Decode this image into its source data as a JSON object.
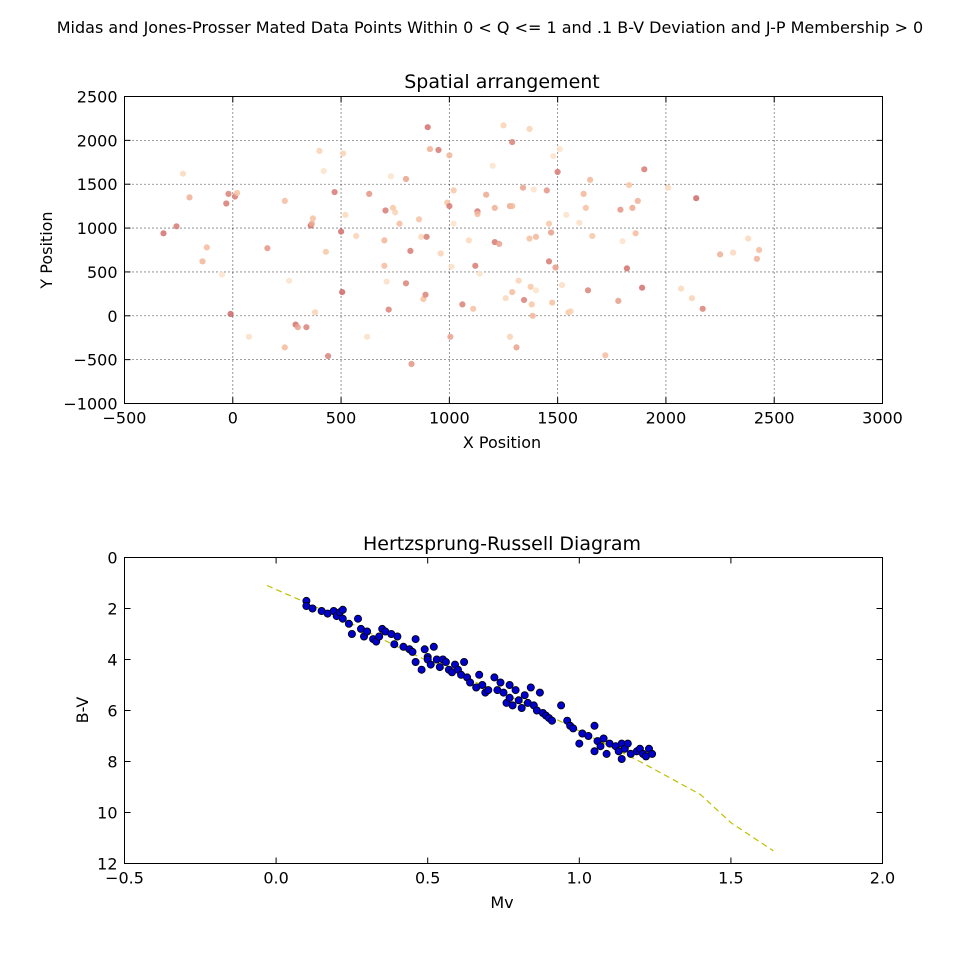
{
  "figure": {
    "suptitle": "Midas and Jones-Prosser Mated Data Points Within 0 < Q <= 1 and .1 B-V Deviation and J-P Membership > 0"
  },
  "chart_data": [
    {
      "type": "scatter",
      "title": "Spatial arrangement",
      "xlabel": "X Position",
      "ylabel": "Y Position",
      "xlim": [
        -500,
        3000
      ],
      "ylim": [
        -1000,
        2500
      ],
      "xticks": [
        -500,
        0,
        500,
        1000,
        1500,
        2000,
        2500,
        3000
      ],
      "yticks": [
        -1000,
        -500,
        0,
        500,
        1000,
        1500,
        2000,
        2500
      ],
      "grid": true,
      "color_scale": [
        "#fde9d2",
        "#f7c3a2",
        "#e79a88",
        "#c95f61"
      ],
      "points": [
        {
          "x": -320,
          "y": 940,
          "c": 0.9
        },
        {
          "x": -260,
          "y": 1020,
          "c": 0.85
        },
        {
          "x": -230,
          "y": 1620,
          "c": 0.15
        },
        {
          "x": -200,
          "y": 1350,
          "c": 0.5
        },
        {
          "x": -140,
          "y": 620,
          "c": 0.45
        },
        {
          "x": -120,
          "y": 780,
          "c": 0.4
        },
        {
          "x": -50,
          "y": 470,
          "c": 0.05
        },
        {
          "x": -30,
          "y": 1280,
          "c": 0.85
        },
        {
          "x": -20,
          "y": 1390,
          "c": 0.8
        },
        {
          "x": -10,
          "y": 20,
          "c": 0.95
        },
        {
          "x": 10,
          "y": 1360,
          "c": 0.85
        },
        {
          "x": 20,
          "y": 1400,
          "c": 0.35
        },
        {
          "x": 75,
          "y": -240,
          "c": 0.1
        },
        {
          "x": 160,
          "y": 770,
          "c": 0.7
        },
        {
          "x": 240,
          "y": 1310,
          "c": 0.4
        },
        {
          "x": 240,
          "y": -360,
          "c": 0.4
        },
        {
          "x": 260,
          "y": 400,
          "c": 0.05
        },
        {
          "x": 290,
          "y": -100,
          "c": 0.9
        },
        {
          "x": 300,
          "y": -130,
          "c": 0.6
        },
        {
          "x": 340,
          "y": -130,
          "c": 0.8
        },
        {
          "x": 360,
          "y": 1030,
          "c": 0.95
        },
        {
          "x": 365,
          "y": 1050,
          "c": 0.55
        },
        {
          "x": 370,
          "y": 1110,
          "c": 0.35
        },
        {
          "x": 380,
          "y": 40,
          "c": 0.2
        },
        {
          "x": 400,
          "y": 1880,
          "c": 0.2
        },
        {
          "x": 420,
          "y": 1650,
          "c": 0.05
        },
        {
          "x": 430,
          "y": 730,
          "c": 0.3
        },
        {
          "x": 440,
          "y": -460,
          "c": 0.8
        },
        {
          "x": 470,
          "y": 1410,
          "c": 0.85
        },
        {
          "x": 500,
          "y": 960,
          "c": 0.9
        },
        {
          "x": 505,
          "y": 270,
          "c": 0.95
        },
        {
          "x": 510,
          "y": 1850,
          "c": 0.2
        },
        {
          "x": 520,
          "y": 1150,
          "c": 0.15
        },
        {
          "x": 570,
          "y": 910,
          "c": 0.2
        },
        {
          "x": 620,
          "y": -240,
          "c": 0.1
        },
        {
          "x": 630,
          "y": 1390,
          "c": 0.7
        },
        {
          "x": 700,
          "y": 570,
          "c": 0.4
        },
        {
          "x": 700,
          "y": 860,
          "c": 0.45
        },
        {
          "x": 705,
          "y": 1200,
          "c": 0.85
        },
        {
          "x": 710,
          "y": 390,
          "c": 0.1
        },
        {
          "x": 720,
          "y": 70,
          "c": 0.8
        },
        {
          "x": 730,
          "y": 1590,
          "c": 0.05
        },
        {
          "x": 740,
          "y": 1230,
          "c": 0.3
        },
        {
          "x": 750,
          "y": 1180,
          "c": 0.2
        },
        {
          "x": 770,
          "y": 1050,
          "c": 0.4
        },
        {
          "x": 800,
          "y": 370,
          "c": 0.8
        },
        {
          "x": 800,
          "y": 1560,
          "c": 0.6
        },
        {
          "x": 820,
          "y": 740,
          "c": 0.85
        },
        {
          "x": 825,
          "y": -550,
          "c": 0.7
        },
        {
          "x": 860,
          "y": 1100,
          "c": 0.35
        },
        {
          "x": 870,
          "y": 900,
          "c": 0.15
        },
        {
          "x": 880,
          "y": 190,
          "c": 0.35
        },
        {
          "x": 890,
          "y": 240,
          "c": 0.8
        },
        {
          "x": 895,
          "y": 900,
          "c": 0.85
        },
        {
          "x": 900,
          "y": 2150,
          "c": 0.9
        },
        {
          "x": 910,
          "y": 1900,
          "c": 0.5
        },
        {
          "x": 950,
          "y": 1890,
          "c": 0.85
        },
        {
          "x": 960,
          "y": 710,
          "c": 0.2
        },
        {
          "x": 990,
          "y": 1290,
          "c": 0.3
        },
        {
          "x": 1000,
          "y": 1830,
          "c": 0.45
        },
        {
          "x": 1000,
          "y": 1250,
          "c": 0.85
        },
        {
          "x": 1005,
          "y": -240,
          "c": 0.6
        },
        {
          "x": 1010,
          "y": 560,
          "c": 0.1
        },
        {
          "x": 1020,
          "y": 1050,
          "c": 0.05
        },
        {
          "x": 1020,
          "y": 1430,
          "c": 0.3
        },
        {
          "x": 1060,
          "y": 130,
          "c": 0.8
        },
        {
          "x": 1090,
          "y": 860,
          "c": 0.15
        },
        {
          "x": 1110,
          "y": 80,
          "c": 0.35
        },
        {
          "x": 1120,
          "y": 570,
          "c": 0.85
        },
        {
          "x": 1130,
          "y": 1190,
          "c": 0.85
        },
        {
          "x": 1130,
          "y": 1160,
          "c": 0.4
        },
        {
          "x": 1140,
          "y": 480,
          "c": 0.05
        },
        {
          "x": 1170,
          "y": 1380,
          "c": 0.55
        },
        {
          "x": 1200,
          "y": 1710,
          "c": 0.05
        },
        {
          "x": 1210,
          "y": 1230,
          "c": 0.5
        },
        {
          "x": 1210,
          "y": 840,
          "c": 0.85
        },
        {
          "x": 1230,
          "y": 820,
          "c": 0.6
        },
        {
          "x": 1250,
          "y": 2170,
          "c": 0.2
        },
        {
          "x": 1260,
          "y": 200,
          "c": 0.15
        },
        {
          "x": 1280,
          "y": -240,
          "c": 0.2
        },
        {
          "x": 1280,
          "y": 1250,
          "c": 0.55
        },
        {
          "x": 1290,
          "y": 1250,
          "c": 0.4
        },
        {
          "x": 1290,
          "y": 1980,
          "c": 0.8
        },
        {
          "x": 1290,
          "y": 270,
          "c": 0.4
        },
        {
          "x": 1310,
          "y": -360,
          "c": 0.6
        },
        {
          "x": 1320,
          "y": 400,
          "c": 0.2
        },
        {
          "x": 1340,
          "y": 1460,
          "c": 0.6
        },
        {
          "x": 1345,
          "y": 180,
          "c": 0.8
        },
        {
          "x": 1370,
          "y": 2130,
          "c": 0.2
        },
        {
          "x": 1370,
          "y": 880,
          "c": 0.35
        },
        {
          "x": 1375,
          "y": 330,
          "c": 0.3
        },
        {
          "x": 1380,
          "y": 130,
          "c": 0.3
        },
        {
          "x": 1385,
          "y": 0,
          "c": 0.45
        },
        {
          "x": 1390,
          "y": 1440,
          "c": 0.05
        },
        {
          "x": 1400,
          "y": 900,
          "c": 0.45
        },
        {
          "x": 1400,
          "y": 290,
          "c": 0.05
        },
        {
          "x": 1450,
          "y": 1430,
          "c": 0.7
        },
        {
          "x": 1460,
          "y": 1050,
          "c": 0.3
        },
        {
          "x": 1460,
          "y": 620,
          "c": 0.85
        },
        {
          "x": 1470,
          "y": 950,
          "c": 0.65
        },
        {
          "x": 1475,
          "y": 150,
          "c": 0.35
        },
        {
          "x": 1480,
          "y": 1820,
          "c": 0.05
        },
        {
          "x": 1490,
          "y": 550,
          "c": 0.65
        },
        {
          "x": 1500,
          "y": 1640,
          "c": 0.85
        },
        {
          "x": 1510,
          "y": 1900,
          "c": 0.05
        },
        {
          "x": 1520,
          "y": 350,
          "c": 0.1
        },
        {
          "x": 1540,
          "y": 1150,
          "c": 0.05
        },
        {
          "x": 1550,
          "y": 40,
          "c": 0.3
        },
        {
          "x": 1560,
          "y": 50,
          "c": 0.2
        },
        {
          "x": 1600,
          "y": 1060,
          "c": 0.1
        },
        {
          "x": 1620,
          "y": 1390,
          "c": 0.45
        },
        {
          "x": 1630,
          "y": 1230,
          "c": 0.35
        },
        {
          "x": 1640,
          "y": 290,
          "c": 0.8
        },
        {
          "x": 1650,
          "y": 1550,
          "c": 0.45
        },
        {
          "x": 1660,
          "y": 910,
          "c": 0.3
        },
        {
          "x": 1720,
          "y": -450,
          "c": 0.4
        },
        {
          "x": 1780,
          "y": 170,
          "c": 0.65
        },
        {
          "x": 1790,
          "y": 1210,
          "c": 0.7
        },
        {
          "x": 1800,
          "y": 850,
          "c": 0.05
        },
        {
          "x": 1820,
          "y": 540,
          "c": 0.9
        },
        {
          "x": 1830,
          "y": 1490,
          "c": 0.3
        },
        {
          "x": 1845,
          "y": 1230,
          "c": 0.55
        },
        {
          "x": 1860,
          "y": 940,
          "c": 0.4
        },
        {
          "x": 1870,
          "y": 1310,
          "c": 0.5
        },
        {
          "x": 1890,
          "y": 320,
          "c": 0.9
        },
        {
          "x": 1900,
          "y": 1670,
          "c": 0.85
        },
        {
          "x": 2010,
          "y": 1460,
          "c": 0.15
        },
        {
          "x": 2070,
          "y": 310,
          "c": 0.15
        },
        {
          "x": 2120,
          "y": 200,
          "c": 0.2
        },
        {
          "x": 2140,
          "y": 1340,
          "c": 0.95
        },
        {
          "x": 2170,
          "y": 80,
          "c": 0.8
        },
        {
          "x": 2250,
          "y": 700,
          "c": 0.5
        },
        {
          "x": 2310,
          "y": 720,
          "c": 0.15
        },
        {
          "x": 2380,
          "y": 880,
          "c": 0.15
        },
        {
          "x": 2420,
          "y": 650,
          "c": 0.5
        },
        {
          "x": 2430,
          "y": 750,
          "c": 0.4
        }
      ]
    },
    {
      "type": "scatter",
      "title": "Hertzsprung-Russell Diagram",
      "xlabel": "Mv",
      "ylabel": "B-V",
      "xlim": [
        -0.5,
        2.0
      ],
      "ylim": [
        12,
        0
      ],
      "xticks": [
        -0.5,
        0.0,
        0.5,
        1.0,
        1.5,
        2.0
      ],
      "yticks": [
        0,
        2,
        4,
        6,
        8,
        10,
        12
      ],
      "grid": false,
      "point_color": "#0000cc",
      "line_color": "#bfbf00",
      "curve": [
        {
          "x": -0.03,
          "y": 1.1
        },
        {
          "x": 0.2,
          "y": 2.3
        },
        {
          "x": 0.4,
          "y": 3.5
        },
        {
          "x": 0.6,
          "y": 4.6
        },
        {
          "x": 0.8,
          "y": 5.6
        },
        {
          "x": 1.0,
          "y": 6.8
        },
        {
          "x": 1.2,
          "y": 8.0
        },
        {
          "x": 1.4,
          "y": 9.3
        },
        {
          "x": 1.5,
          "y": 10.4
        },
        {
          "x": 1.64,
          "y": 11.5
        }
      ],
      "points": [
        {
          "x": 0.1,
          "y": 1.7
        },
        {
          "x": 0.1,
          "y": 1.9
        },
        {
          "x": 0.12,
          "y": 2.0
        },
        {
          "x": 0.15,
          "y": 2.1
        },
        {
          "x": 0.17,
          "y": 2.2
        },
        {
          "x": 0.19,
          "y": 2.1
        },
        {
          "x": 0.2,
          "y": 2.3
        },
        {
          "x": 0.21,
          "y": 2.15
        },
        {
          "x": 0.22,
          "y": 2.05
        },
        {
          "x": 0.22,
          "y": 2.4
        },
        {
          "x": 0.24,
          "y": 2.6
        },
        {
          "x": 0.25,
          "y": 3.0
        },
        {
          "x": 0.27,
          "y": 2.4
        },
        {
          "x": 0.28,
          "y": 2.8
        },
        {
          "x": 0.29,
          "y": 3.1
        },
        {
          "x": 0.3,
          "y": 2.9
        },
        {
          "x": 0.32,
          "y": 3.2
        },
        {
          "x": 0.33,
          "y": 3.3
        },
        {
          "x": 0.34,
          "y": 3.1
        },
        {
          "x": 0.35,
          "y": 2.8
        },
        {
          "x": 0.36,
          "y": 2.9
        },
        {
          "x": 0.38,
          "y": 3.0
        },
        {
          "x": 0.39,
          "y": 3.4
        },
        {
          "x": 0.4,
          "y": 3.1
        },
        {
          "x": 0.42,
          "y": 3.5
        },
        {
          "x": 0.44,
          "y": 3.6
        },
        {
          "x": 0.45,
          "y": 3.7
        },
        {
          "x": 0.46,
          "y": 3.2
        },
        {
          "x": 0.46,
          "y": 4.1
        },
        {
          "x": 0.48,
          "y": 4.4
        },
        {
          "x": 0.49,
          "y": 3.6
        },
        {
          "x": 0.5,
          "y": 3.9
        },
        {
          "x": 0.5,
          "y": 4.0
        },
        {
          "x": 0.51,
          "y": 4.2
        },
        {
          "x": 0.52,
          "y": 3.5
        },
        {
          "x": 0.53,
          "y": 4.0
        },
        {
          "x": 0.54,
          "y": 4.3
        },
        {
          "x": 0.55,
          "y": 4.0
        },
        {
          "x": 0.56,
          "y": 4.1
        },
        {
          "x": 0.57,
          "y": 4.4
        },
        {
          "x": 0.58,
          "y": 4.5
        },
        {
          "x": 0.59,
          "y": 4.2
        },
        {
          "x": 0.6,
          "y": 4.4
        },
        {
          "x": 0.61,
          "y": 4.6
        },
        {
          "x": 0.62,
          "y": 4.1
        },
        {
          "x": 0.63,
          "y": 4.7
        },
        {
          "x": 0.64,
          "y": 4.9
        },
        {
          "x": 0.66,
          "y": 5.1
        },
        {
          "x": 0.67,
          "y": 4.6
        },
        {
          "x": 0.68,
          "y": 5.0
        },
        {
          "x": 0.69,
          "y": 5.3
        },
        {
          "x": 0.7,
          "y": 5.2
        },
        {
          "x": 0.72,
          "y": 4.7
        },
        {
          "x": 0.73,
          "y": 5.2
        },
        {
          "x": 0.74,
          "y": 4.9
        },
        {
          "x": 0.75,
          "y": 5.3
        },
        {
          "x": 0.76,
          "y": 5.7
        },
        {
          "x": 0.77,
          "y": 5.0
        },
        {
          "x": 0.77,
          "y": 5.5
        },
        {
          "x": 0.78,
          "y": 5.8
        },
        {
          "x": 0.79,
          "y": 5.2
        },
        {
          "x": 0.8,
          "y": 5.6
        },
        {
          "x": 0.81,
          "y": 5.9
        },
        {
          "x": 0.82,
          "y": 5.4
        },
        {
          "x": 0.83,
          "y": 5.7
        },
        {
          "x": 0.84,
          "y": 5.1
        },
        {
          "x": 0.85,
          "y": 5.8
        },
        {
          "x": 0.86,
          "y": 6.0
        },
        {
          "x": 0.87,
          "y": 5.3
        },
        {
          "x": 0.88,
          "y": 6.1
        },
        {
          "x": 0.89,
          "y": 6.2
        },
        {
          "x": 0.9,
          "y": 6.3
        },
        {
          "x": 0.91,
          "y": 6.4
        },
        {
          "x": 0.94,
          "y": 5.8
        },
        {
          "x": 0.96,
          "y": 6.4
        },
        {
          "x": 0.97,
          "y": 6.6
        },
        {
          "x": 0.98,
          "y": 6.7
        },
        {
          "x": 1.0,
          "y": 7.3
        },
        {
          "x": 1.01,
          "y": 6.9
        },
        {
          "x": 1.03,
          "y": 7.0
        },
        {
          "x": 1.05,
          "y": 7.6
        },
        {
          "x": 1.05,
          "y": 6.6
        },
        {
          "x": 1.06,
          "y": 7.2
        },
        {
          "x": 1.07,
          "y": 7.4
        },
        {
          "x": 1.08,
          "y": 7.1
        },
        {
          "x": 1.09,
          "y": 7.7
        },
        {
          "x": 1.1,
          "y": 7.3
        },
        {
          "x": 1.12,
          "y": 7.4
        },
        {
          "x": 1.13,
          "y": 7.6
        },
        {
          "x": 1.14,
          "y": 7.3
        },
        {
          "x": 1.14,
          "y": 7.9
        },
        {
          "x": 1.15,
          "y": 7.5
        },
        {
          "x": 1.16,
          "y": 7.3
        },
        {
          "x": 1.17,
          "y": 7.7
        },
        {
          "x": 1.19,
          "y": 7.6
        },
        {
          "x": 1.2,
          "y": 7.5
        },
        {
          "x": 1.21,
          "y": 7.7
        },
        {
          "x": 1.22,
          "y": 7.8
        },
        {
          "x": 1.23,
          "y": 7.5
        },
        {
          "x": 1.24,
          "y": 7.7
        }
      ]
    }
  ]
}
